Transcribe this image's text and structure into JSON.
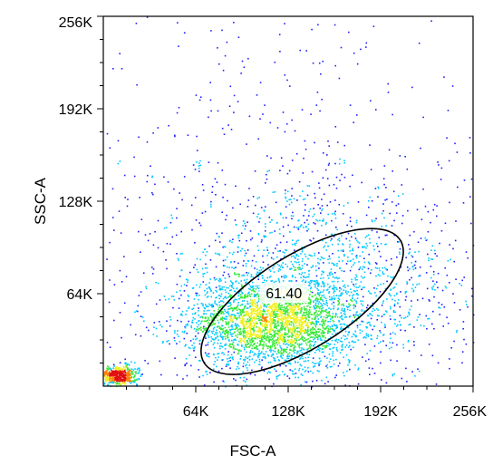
{
  "chart_data": {
    "type": "scatter",
    "subtype": "flow-cytometry-density-dot-plot",
    "title": "",
    "xlabel": "FSC-A",
    "ylabel": "SSC-A",
    "xlim": [
      0,
      262144
    ],
    "ylim": [
      0,
      262144
    ],
    "x_ticks": [
      {
        "value": 65536,
        "label": "64K"
      },
      {
        "value": 131072,
        "label": "128K"
      },
      {
        "value": 196608,
        "label": "192K"
      },
      {
        "value": 262144,
        "label": "256K"
      }
    ],
    "y_ticks": [
      {
        "value": 65536,
        "label": "64K"
      },
      {
        "value": 131072,
        "label": "128K"
      },
      {
        "value": 196608,
        "label": "192K"
      },
      {
        "value": 262144,
        "label": "256K"
      }
    ],
    "grid": false,
    "density_colormap": [
      "#2020ff",
      "#00c8ff",
      "#38e838",
      "#f0f020",
      "#ff8000",
      "#e01010"
    ],
    "populations": [
      {
        "center": [
          120000,
          46000
        ],
        "sd": [
          30000,
          16000
        ],
        "share": 0.52
      },
      {
        "center": [
          150000,
          70000
        ],
        "sd": [
          55000,
          34000
        ],
        "share": 0.3
      },
      {
        "center": [
          10000,
          8000
        ],
        "sd": [
          7000,
          3500
        ],
        "share": 0.1
      },
      {
        "center": [
          110000,
          160000
        ],
        "sd": [
          90000,
          65000
        ],
        "share": 0.08
      }
    ],
    "gates": [
      {
        "shape": "ellipse",
        "center": [
          141000,
          60000
        ],
        "semi_axes": [
          82000,
          33000
        ],
        "rotation_deg": 32,
        "label": "61.40",
        "label_value": [
          128000,
          65500
        ]
      }
    ]
  }
}
